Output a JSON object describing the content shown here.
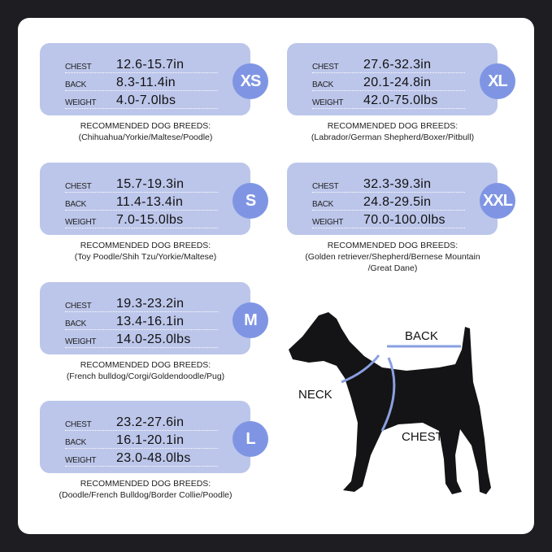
{
  "sizes": [
    {
      "size": "XS",
      "chest": "12.6-15.7in",
      "back": "8.3-11.4in",
      "weight": "4.0-7.0lbs",
      "breeds_heading": "RECOMMENDED DOG BREEDS:",
      "breeds": "(Chihuahua/Yorkie/Maltese/Poodle)",
      "breeds2": ""
    },
    {
      "size": "S",
      "chest": "15.7-19.3in",
      "back": "11.4-13.4in",
      "weight": "7.0-15.0lbs",
      "breeds_heading": "RECOMMENDED DOG BREEDS:",
      "breeds": "(Toy Poodle/Shih Tzu/Yorkie/Maltese)",
      "breeds2": ""
    },
    {
      "size": "M",
      "chest": "19.3-23.2in",
      "back": "13.4-16.1in",
      "weight": "14.0-25.0lbs",
      "breeds_heading": "RECOMMENDED DOG BREEDS:",
      "breeds": "(French bulldog/Corgi/Goldendoodle/Pug)",
      "breeds2": ""
    },
    {
      "size": "L",
      "chest": "23.2-27.6in",
      "back": "16.1-20.1in",
      "weight": "23.0-48.0lbs",
      "breeds_heading": "RECOMMENDED DOG BREEDS:",
      "breeds": "(Doodle/French Bulldog/Border Collie/Poodle)",
      "breeds2": ""
    },
    {
      "size": "XL",
      "chest": "27.6-32.3in",
      "back": "20.1-24.8in",
      "weight": "42.0-75.0lbs",
      "breeds_heading": "RECOMMENDED DOG BREEDS:",
      "breeds": "(Labrador/German Shepherd/Boxer/Pitbull)",
      "breeds2": ""
    },
    {
      "size": "XXL",
      "chest": "32.3-39.3in",
      "back": "24.8-29.5in",
      "weight": "70.0-100.0lbs",
      "breeds_heading": "RECOMMENDED DOG BREEDS:",
      "breeds": "(Golden retriever/Shepherd/Bernese Mountain",
      "breeds2": "/Great Dane)"
    }
  ],
  "labels": {
    "chest": "CHEST",
    "back": "BACK",
    "weight": "WEIGHT"
  },
  "diagram": {
    "back": "BACK",
    "neck": "NECK",
    "chest": "CHEST"
  },
  "colors": {
    "card": "#bcc6ea",
    "badge": "#7f95e4",
    "measure_line": "#8a9fe0",
    "background": "#1e1e22"
  }
}
